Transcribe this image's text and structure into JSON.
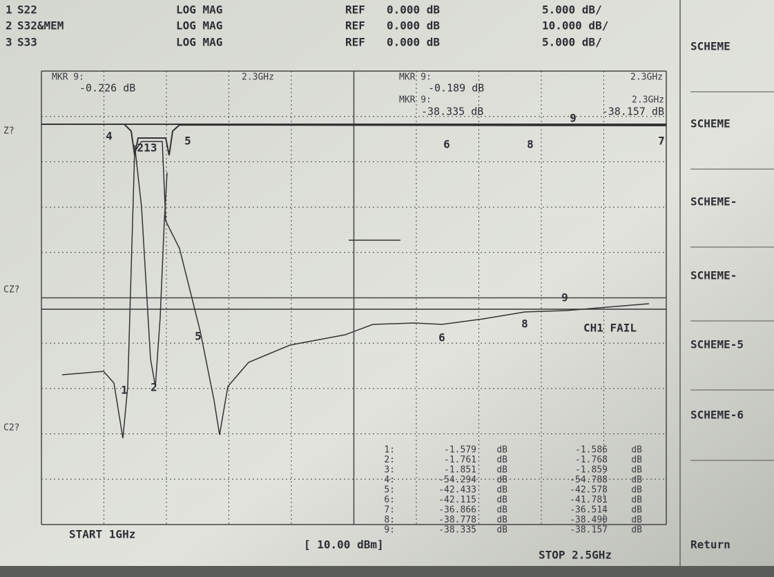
{
  "header": {
    "rows": [
      {
        "num": "1",
        "param": "S22",
        "format": "LOG MAG",
        "ref": "REF",
        "ref_value": "0.000 dB",
        "scale": "5.000 dB/"
      },
      {
        "num": "2",
        "param": "S32&MEM",
        "format": "LOG MAG",
        "ref": "REF",
        "ref_value": "0.000 dB",
        "scale": "10.000 dB/"
      },
      {
        "num": "3",
        "param": "S33",
        "format": "LOG MAG",
        "ref": "REF",
        "ref_value": "0.000 dB",
        "scale": "5.000 dB/"
      }
    ]
  },
  "markers": {
    "left": {
      "label": "MKR 9:",
      "value": "-0.226 dB",
      "freq": "2.3GHz"
    },
    "right": {
      "label": "MKR 9:",
      "value": "-0.189 dB",
      "freq": "2.3GHz",
      "label2": "MKR 9:",
      "value2": "-38.335 dB",
      "freq2": "2.3GHz",
      "value3": "-38.157 dB"
    }
  },
  "side_labels": [
    "Z?",
    "CZ?",
    "C2?"
  ],
  "trace_markers": [
    "4",
    "213",
    "5",
    "6",
    "8",
    "7",
    "9",
    "1",
    "2",
    "5",
    "6",
    "8",
    "9"
  ],
  "status": "CH1 FAIL",
  "table": {
    "unit": "dB",
    "rows": [
      [
        "1:",
        "-1.579",
        "-1.586"
      ],
      [
        "2:",
        "-1.761",
        "-1.768"
      ],
      [
        "3:",
        "-1.851",
        "-1.859"
      ],
      [
        "4:",
        "-54.294",
        "-54.788"
      ],
      [
        "5:",
        "-42.433",
        "-42.578"
      ],
      [
        "6:",
        "-42.115",
        "-41.781"
      ],
      [
        "7:",
        "-36.866",
        "-36.514"
      ],
      [
        "8:",
        "-38.778",
        "-38.490"
      ],
      [
        "9:",
        "-38.335",
        "-38.157"
      ]
    ]
  },
  "footer": {
    "start": "START 1GHz",
    "power": "[ 10.00 dBm]",
    "stop": "STOP 2.5GHz"
  },
  "softkeys": [
    "SCHEME",
    "SCHEME",
    "SCHEME-",
    "SCHEME-",
    "SCHEME-5",
    "SCHEME-6",
    "Return"
  ]
}
